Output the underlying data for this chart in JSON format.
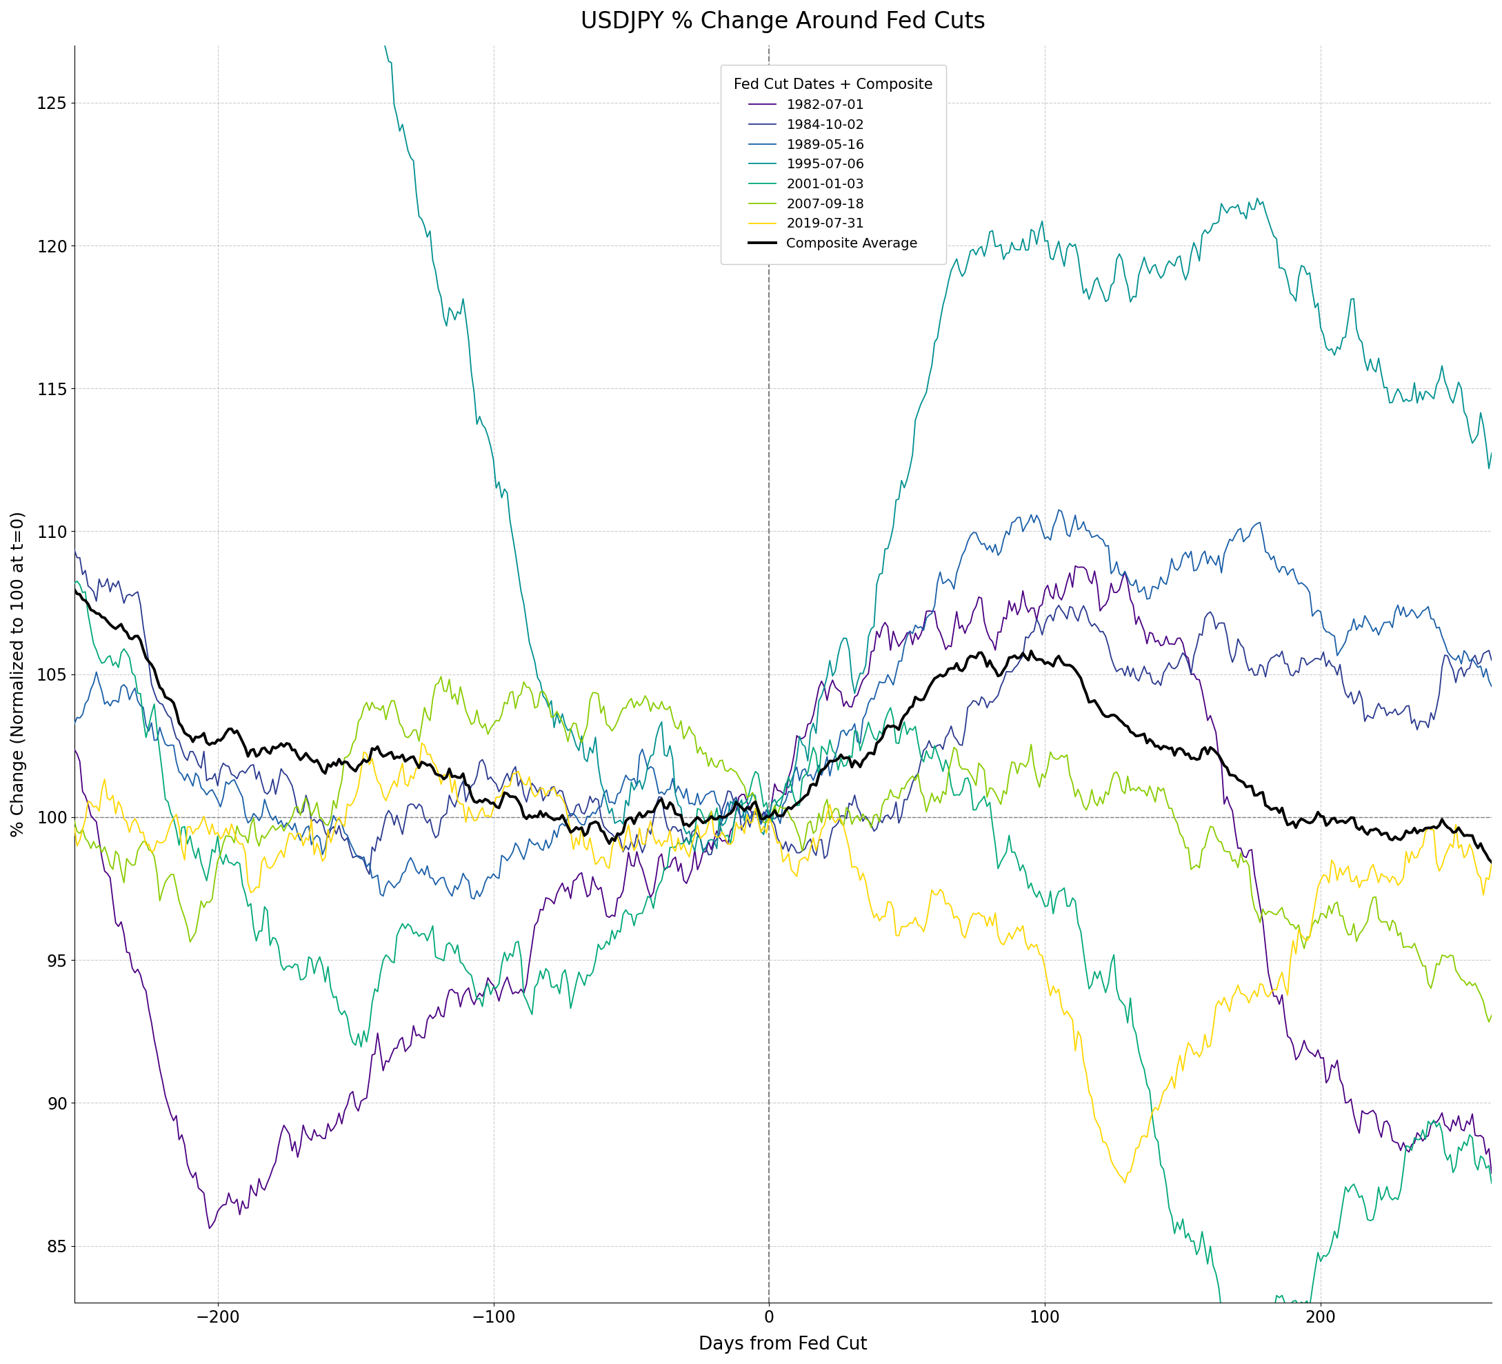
{
  "title": "USDJPY % Change Around Fed Cuts",
  "xlabel": "Days from Fed Cut",
  "ylabel": "% Change (Normalized to 100 at t=0)",
  "xlim": [
    -252,
    262
  ],
  "ylim": [
    83,
    127
  ],
  "yticks": [
    85,
    90,
    95,
    100,
    105,
    110,
    115,
    120,
    125
  ],
  "xticks": [
    -200,
    -100,
    0,
    100,
    200
  ],
  "series": [
    {
      "label": "1982-07-01",
      "color": "#4B0082",
      "lw": 1.3
    },
    {
      "label": "1984-10-02",
      "color": "#2B3A8F",
      "lw": 1.3
    },
    {
      "label": "1989-05-16",
      "color": "#1a5fa8",
      "lw": 1.3
    },
    {
      "label": "1995-07-06",
      "color": "#009090",
      "lw": 1.3
    },
    {
      "label": "2001-01-03",
      "color": "#00A878",
      "lw": 1.3
    },
    {
      "label": "2007-09-18",
      "color": "#88CC00",
      "lw": 1.3
    },
    {
      "label": "2019-07-31",
      "color": "#FFD700",
      "lw": 1.3
    },
    {
      "label": "Composite Average",
      "color": "#000000",
      "lw": 2.8
    }
  ],
  "legend_title": "Fed Cut Dates + Composite",
  "background_color": "#ffffff",
  "grid_color": "#aaaaaa",
  "grid_linestyle": "--",
  "vline_x": 0,
  "hline_y": 100
}
